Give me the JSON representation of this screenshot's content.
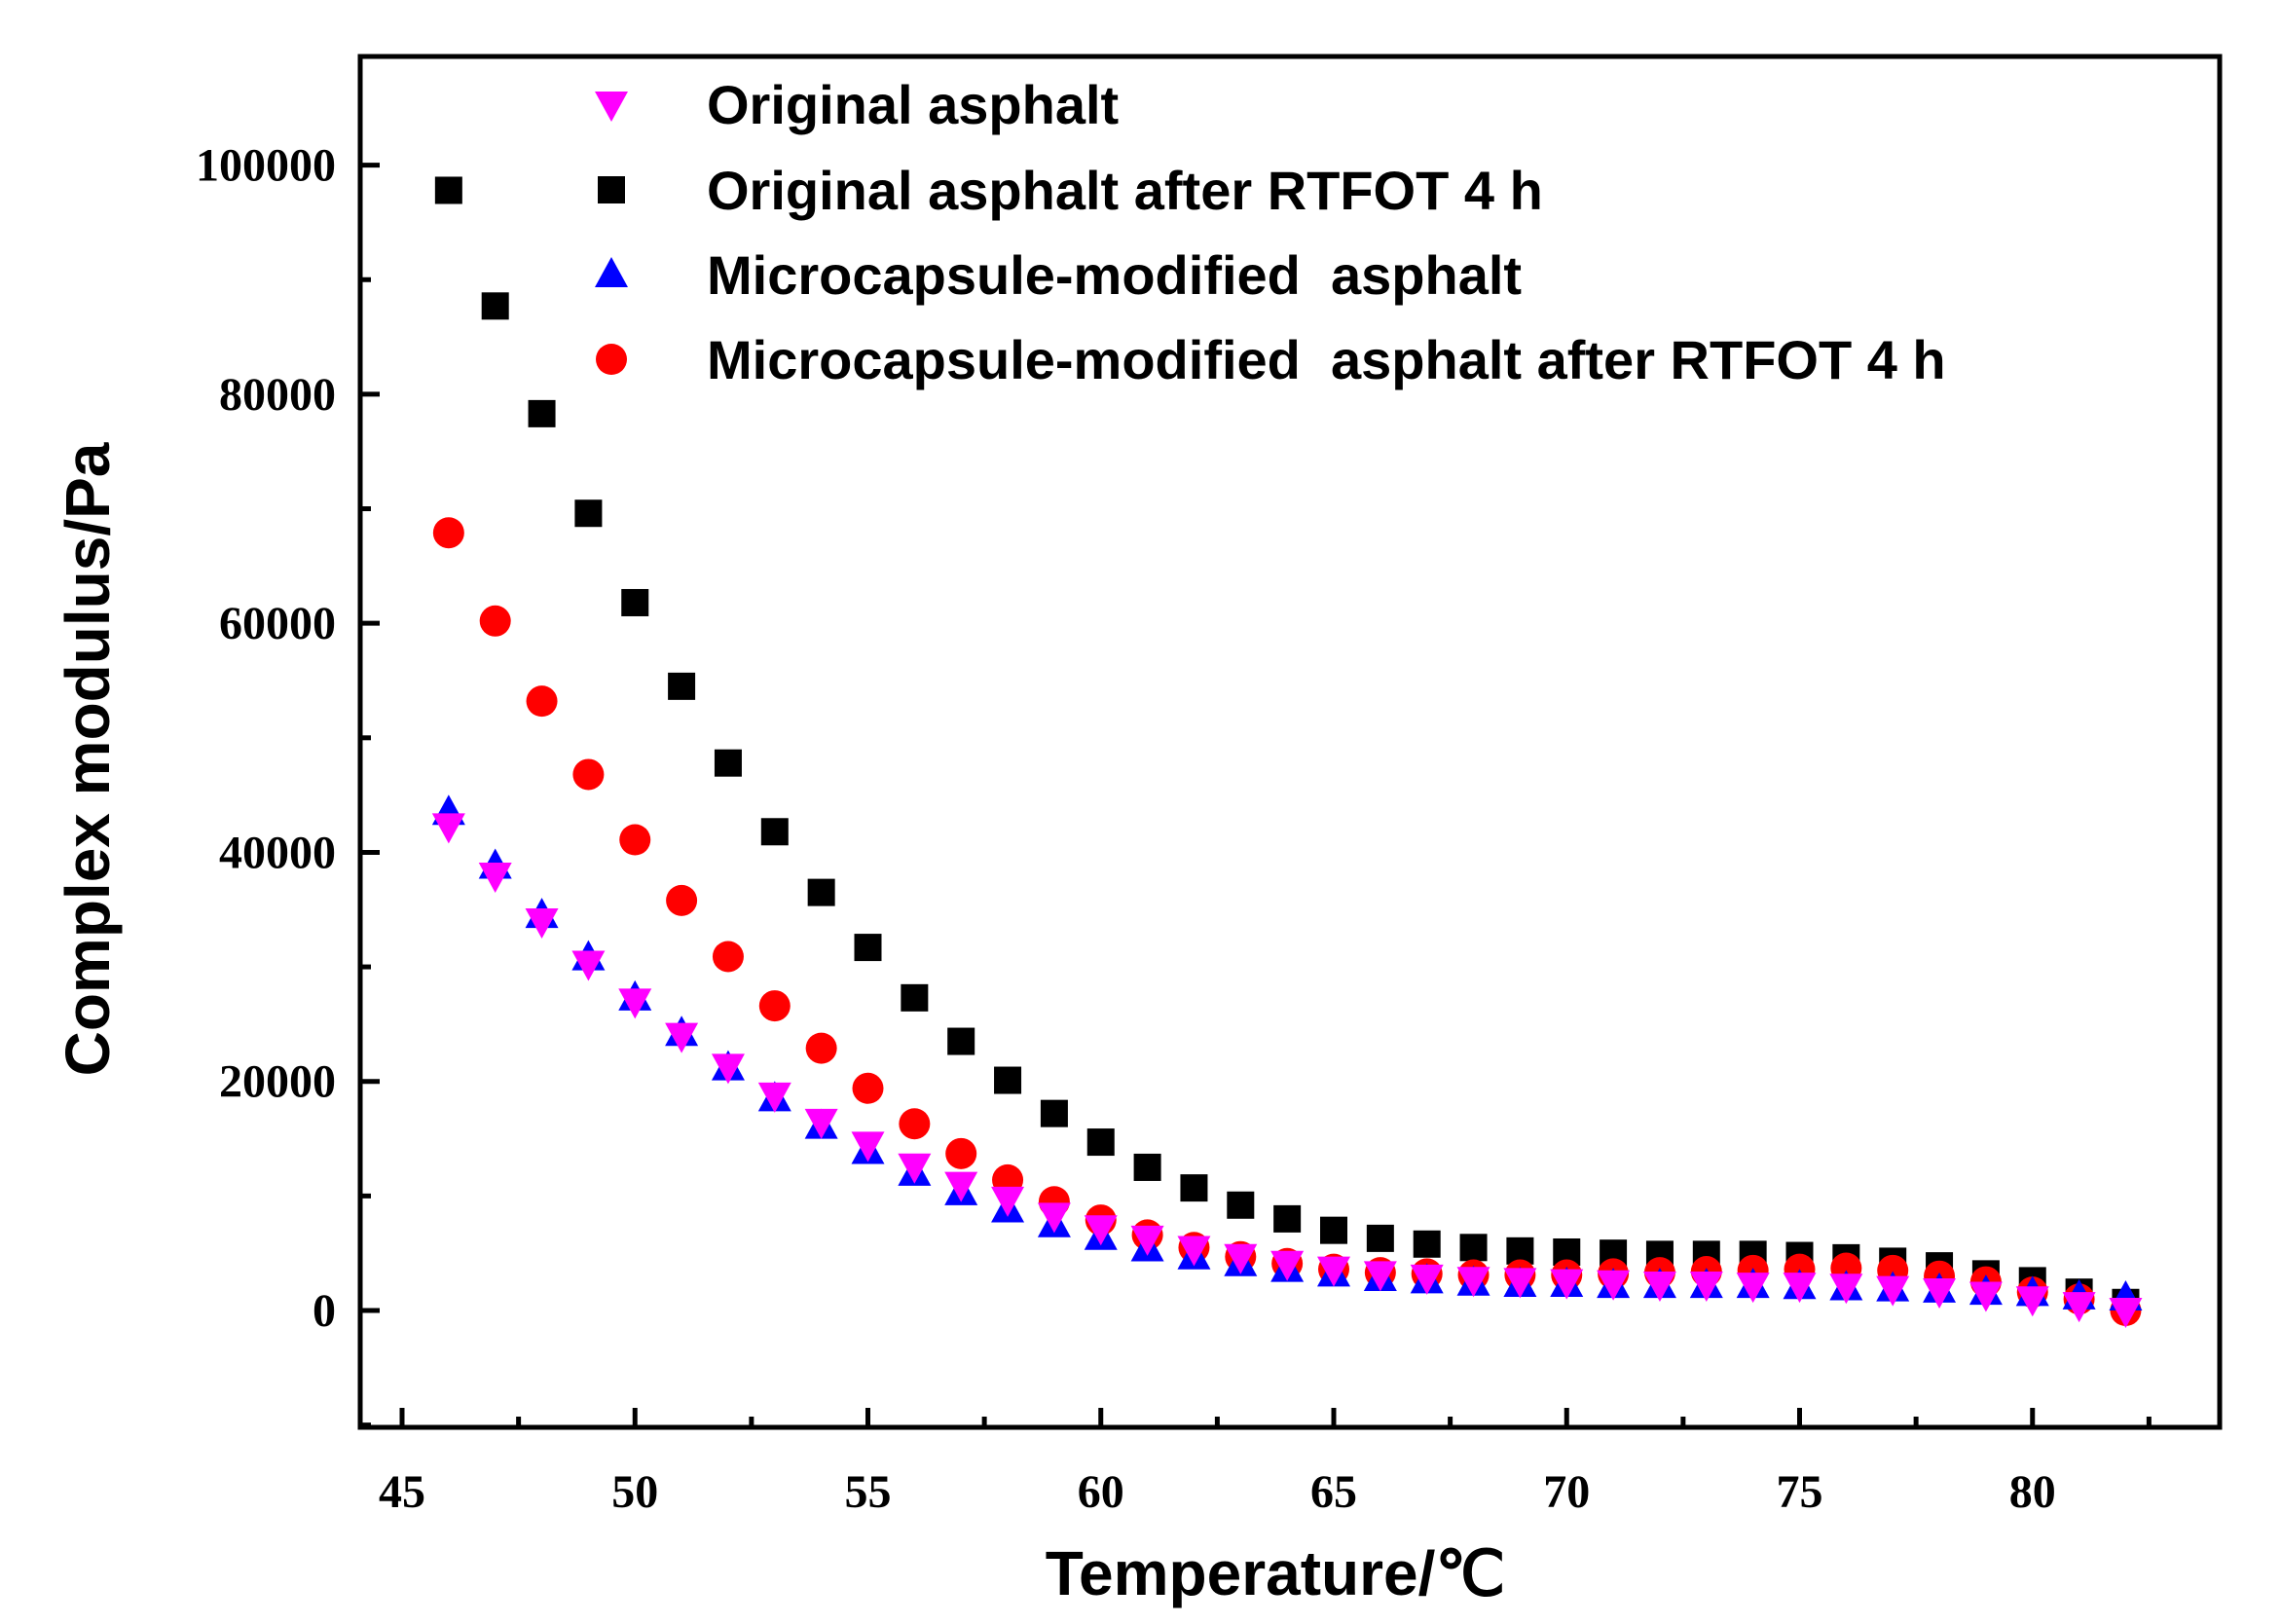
{
  "chart_data": {
    "type": "scatter",
    "title": "",
    "xlabel": "Temperature/℃",
    "ylabel": "Complex modulus/Pa",
    "xlim": [
      44,
      84
    ],
    "ylim": [
      -10000,
      110000
    ],
    "xticks": [
      45,
      50,
      55,
      60,
      65,
      70,
      75,
      80
    ],
    "xtick_labels": [
      "45",
      "50",
      "55",
      "60",
      "65",
      "70",
      "75",
      "80"
    ],
    "yticks": [
      0,
      20000,
      40000,
      60000,
      80000,
      100000
    ],
    "ytick_labels": [
      "0",
      "20000",
      "40000",
      "60000",
      "80000",
      "100000"
    ],
    "legend_position": "top-left",
    "x": [
      46,
      47,
      48,
      49,
      50,
      51,
      52,
      53,
      54,
      55,
      56,
      57,
      58,
      59,
      60,
      61,
      62,
      63,
      64,
      65,
      66,
      67,
      68,
      69,
      70,
      71,
      72,
      73,
      74,
      75,
      76,
      77,
      78,
      79,
      80,
      81,
      82
    ],
    "series": [
      {
        "name": "Original asphalt",
        "marker": "triangle-down",
        "color": "#ff00ff",
        "values": [
          42300,
          38000,
          34000,
          30300,
          27000,
          24000,
          21300,
          18800,
          16500,
          14500,
          12600,
          11000,
          9700,
          8300,
          7200,
          6300,
          5400,
          4700,
          4100,
          3600,
          3200,
          2900,
          2700,
          2600,
          2500,
          2400,
          2300,
          2300,
          2200,
          2200,
          2100,
          1900,
          1700,
          1400,
          1000,
          500,
          0
        ]
      },
      {
        "name": "Original asphalt after RTFOT 4 h",
        "marker": "square",
        "color": "#000000",
        "values": [
          97800,
          87700,
          78300,
          69600,
          61800,
          54500,
          47800,
          41800,
          36500,
          31700,
          27300,
          23500,
          20100,
          17200,
          14700,
          12500,
          10700,
          9200,
          8000,
          7000,
          6300,
          5800,
          5500,
          5200,
          5100,
          5000,
          4900,
          4900,
          4900,
          4800,
          4600,
          4300,
          3900,
          3200,
          2600,
          1600,
          700
        ]
      },
      {
        "name": "Microcapsule-modified  asphalt",
        "marker": "triangle-up",
        "color": "#0000ff",
        "values": [
          43500,
          38800,
          34500,
          30800,
          27300,
          24200,
          21200,
          18500,
          16100,
          13900,
          12000,
          10300,
          8800,
          7500,
          6400,
          5400,
          4700,
          4100,
          3600,
          3200,
          2800,
          2600,
          2400,
          2300,
          2300,
          2200,
          2200,
          2200,
          2200,
          2100,
          2000,
          1900,
          1800,
          1600,
          1500,
          1200,
          1100
        ]
      },
      {
        "name": "Microcapsule-modified  asphalt after RTFOT 4 h",
        "marker": "circle",
        "color": "#ff0000",
        "values": [
          67900,
          60200,
          53200,
          46800,
          41100,
          35800,
          30900,
          26600,
          22900,
          19400,
          16300,
          13700,
          11400,
          9500,
          7900,
          6600,
          5500,
          4700,
          4100,
          3600,
          3300,
          3200,
          3100,
          3100,
          3100,
          3200,
          3300,
          3400,
          3500,
          3600,
          3700,
          3500,
          3000,
          2500,
          1600,
          1000,
          0
        ]
      }
    ]
  }
}
